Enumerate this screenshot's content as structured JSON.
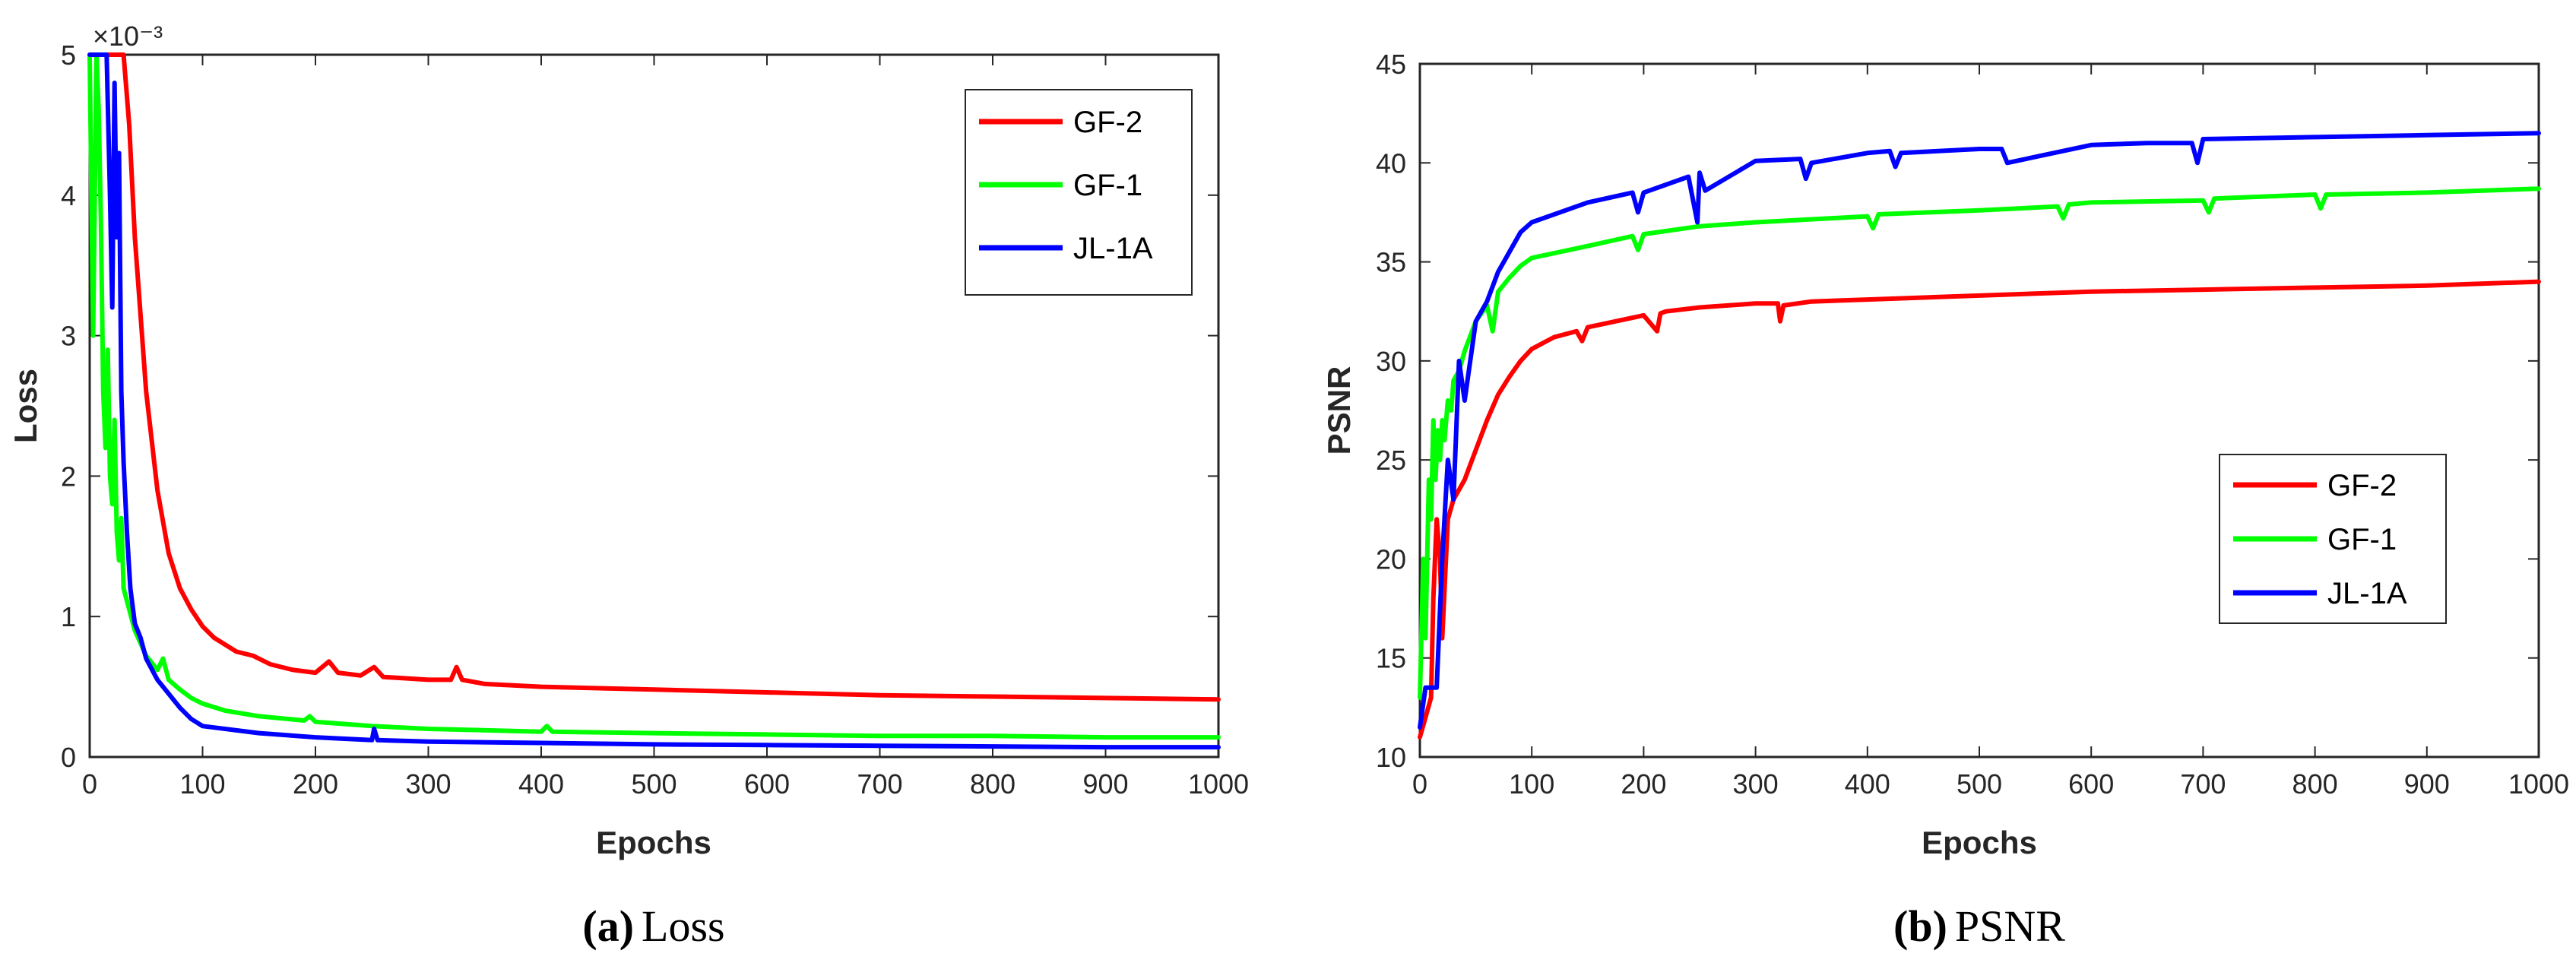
{
  "chart_data": [
    {
      "type": "line",
      "title": "",
      "xlabel": "Epochs",
      "ylabel": "Loss",
      "exponent_label": "×10⁻³",
      "xlim": [
        0,
        1000
      ],
      "ylim": [
        0,
        5
      ],
      "xticks": [
        0,
        100,
        200,
        300,
        400,
        500,
        600,
        700,
        800,
        900,
        1000
      ],
      "yticks": [
        0,
        1,
        2,
        3,
        4,
        5
      ],
      "legend_position": "top-right",
      "caption_letter": "(a)",
      "caption_text": "Loss",
      "series": [
        {
          "name": "GF-2",
          "color": "#ff0000",
          "x": [
            0,
            20,
            25,
            30,
            35,
            40,
            50,
            60,
            70,
            80,
            90,
            100,
            110,
            130,
            145,
            160,
            180,
            200,
            212,
            220,
            240,
            252,
            260,
            280,
            300,
            320,
            325,
            330,
            350,
            400,
            500,
            600,
            700,
            800,
            900,
            1000
          ],
          "y": [
            5,
            5,
            5,
            5,
            4.5,
            3.7,
            2.6,
            1.9,
            1.45,
            1.2,
            1.05,
            0.93,
            0.85,
            0.75,
            0.72,
            0.66,
            0.62,
            0.6,
            0.68,
            0.6,
            0.58,
            0.64,
            0.57,
            0.56,
            0.55,
            0.55,
            0.64,
            0.55,
            0.52,
            0.5,
            0.48,
            0.46,
            0.44,
            0.43,
            0.42,
            0.41
          ]
        },
        {
          "name": "GF-1",
          "color": "#00ff00",
          "x": [
            0,
            3,
            6,
            8,
            10,
            12,
            14,
            16,
            18,
            20,
            22,
            24,
            26,
            28,
            30,
            35,
            40,
            50,
            60,
            65,
            70,
            80,
            90,
            100,
            120,
            150,
            190,
            195,
            200,
            250,
            300,
            400,
            405,
            410,
            500,
            600,
            700,
            800,
            900,
            1000
          ],
          "y": [
            5,
            3.0,
            5,
            4.6,
            3.8,
            2.6,
            2.2,
            2.9,
            2.0,
            1.8,
            2.4,
            1.6,
            1.4,
            1.7,
            1.2,
            1.05,
            0.9,
            0.72,
            0.62,
            0.7,
            0.55,
            0.48,
            0.42,
            0.38,
            0.33,
            0.29,
            0.26,
            0.29,
            0.25,
            0.22,
            0.2,
            0.18,
            0.22,
            0.18,
            0.17,
            0.16,
            0.15,
            0.15,
            0.14,
            0.14
          ]
        },
        {
          "name": "JL-1A",
          "color": "#0000ff",
          "x": [
            0,
            5,
            10,
            15,
            18,
            20,
            22,
            24,
            26,
            28,
            30,
            33,
            36,
            40,
            45,
            50,
            60,
            70,
            80,
            90,
            100,
            150,
            200,
            250,
            252,
            255,
            300,
            400,
            500,
            600,
            700,
            800,
            900,
            1000
          ],
          "y": [
            5,
            5,
            5,
            5,
            4.0,
            3.2,
            4.8,
            3.7,
            4.3,
            2.6,
            2.1,
            1.6,
            1.2,
            0.95,
            0.85,
            0.7,
            0.55,
            0.45,
            0.35,
            0.27,
            0.22,
            0.17,
            0.14,
            0.12,
            0.2,
            0.12,
            0.11,
            0.1,
            0.09,
            0.085,
            0.08,
            0.075,
            0.07,
            0.07
          ]
        }
      ]
    },
    {
      "type": "line",
      "title": "",
      "xlabel": "Epochs",
      "ylabel": "PSNR",
      "xlim": [
        0,
        1000
      ],
      "ylim": [
        10,
        45
      ],
      "xticks": [
        0,
        100,
        200,
        300,
        400,
        500,
        600,
        700,
        800,
        900,
        1000
      ],
      "yticks": [
        10,
        15,
        20,
        25,
        30,
        35,
        40,
        45
      ],
      "legend_position": "lower-right",
      "caption_letter": "(b)",
      "caption_text": "PSNR",
      "series": [
        {
          "name": "GF-2",
          "color": "#ff0000",
          "x": [
            0,
            5,
            10,
            12,
            15,
            18,
            20,
            25,
            30,
            40,
            50,
            60,
            70,
            80,
            90,
            100,
            120,
            140,
            145,
            150,
            200,
            212,
            215,
            220,
            250,
            300,
            320,
            322,
            325,
            350,
            400,
            500,
            600,
            700,
            800,
            900,
            1000
          ],
          "y": [
            11,
            12,
            13,
            18,
            22,
            20,
            16,
            22,
            23,
            24,
            25.5,
            27,
            28.3,
            29.2,
            30,
            30.6,
            31.2,
            31.5,
            31.0,
            31.7,
            32.3,
            31.5,
            32.4,
            32.5,
            32.7,
            32.9,
            32.9,
            32.0,
            32.8,
            33.0,
            33.1,
            33.3,
            33.5,
            33.6,
            33.7,
            33.8,
            34.0
          ]
        },
        {
          "name": "GF-1",
          "color": "#00ff00",
          "x": [
            0,
            3,
            5,
            8,
            10,
            12,
            14,
            16,
            18,
            20,
            22,
            25,
            28,
            30,
            35,
            40,
            50,
            60,
            65,
            70,
            80,
            90,
            100,
            150,
            190,
            195,
            200,
            250,
            300,
            400,
            405,
            410,
            500,
            570,
            575,
            580,
            600,
            700,
            705,
            710,
            800,
            805,
            810,
            900,
            1000
          ],
          "y": [
            13,
            20,
            16,
            24,
            22,
            27,
            24,
            26.5,
            25,
            27,
            26,
            28,
            27.5,
            29,
            29.5,
            30.5,
            32,
            32.8,
            31.5,
            33.5,
            34.2,
            34.8,
            35.2,
            35.8,
            36.3,
            35.6,
            36.4,
            36.8,
            37.0,
            37.3,
            36.7,
            37.4,
            37.6,
            37.8,
            37.2,
            37.9,
            38.0,
            38.1,
            37.5,
            38.2,
            38.4,
            37.7,
            38.4,
            38.5,
            38.7
          ]
        },
        {
          "name": "JL-1A",
          "color": "#0000ff",
          "x": [
            0,
            5,
            10,
            15,
            20,
            25,
            30,
            35,
            40,
            50,
            60,
            70,
            80,
            90,
            100,
            150,
            190,
            195,
            200,
            240,
            248,
            250,
            255,
            300,
            340,
            345,
            350,
            400,
            420,
            425,
            430,
            500,
            520,
            525,
            600,
            650,
            690,
            695,
            700,
            800,
            900,
            1000
          ],
          "y": [
            11.5,
            13.5,
            13.5,
            13.5,
            20,
            25,
            23,
            30,
            28,
            32,
            33,
            34.5,
            35.5,
            36.5,
            37,
            38,
            38.5,
            37.5,
            38.5,
            39.3,
            37,
            39.5,
            38.6,
            40.1,
            40.2,
            39.2,
            40.0,
            40.5,
            40.6,
            39.8,
            40.5,
            40.7,
            40.7,
            40.0,
            40.9,
            41.0,
            41.0,
            40.0,
            41.2,
            41.3,
            41.4,
            41.5
          ]
        }
      ]
    }
  ]
}
